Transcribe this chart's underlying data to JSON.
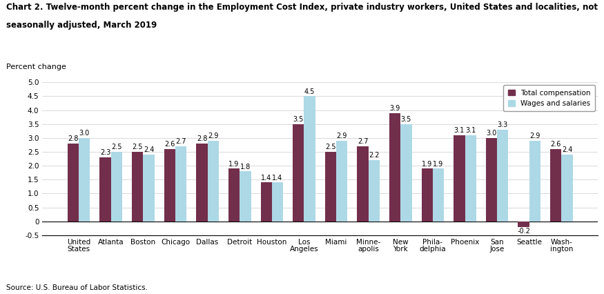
{
  "title_line1": "Chart 2. Twelve-month percent change in the Employment Cost Index, private industry workers, United States and localities, not",
  "title_line2": "seasonally adjusted, March 2019",
  "ylabel_text": "Percent change",
  "source": "Source: U.S. Bureau of Labor Statistics.",
  "categories": [
    "United\nStates",
    "Atlanta",
    "Boston",
    "Chicago",
    "Dallas",
    "Detroit",
    "Houston",
    "Los\nAngeles",
    "Miami",
    "Minne-\napolis",
    "New\nYork",
    "Phila-\ndelphia",
    "Phoenix",
    "San\nJose",
    "Seattle",
    "Wash-\nington"
  ],
  "total_compensation": [
    2.8,
    2.3,
    2.5,
    2.6,
    2.8,
    1.9,
    1.4,
    3.5,
    2.5,
    2.7,
    3.9,
    1.9,
    3.1,
    3.0,
    -0.2,
    2.6
  ],
  "wages_and_salaries": [
    3.0,
    2.5,
    2.4,
    2.7,
    2.9,
    1.8,
    1.4,
    4.5,
    2.9,
    2.2,
    3.5,
    1.9,
    3.1,
    3.3,
    2.9,
    2.4
  ],
  "total_comp_color": "#722F4B",
  "wages_color": "#ADD8E6",
  "ylim": [
    -0.5,
    5.0
  ],
  "yticks": [
    -0.5,
    0.0,
    0.5,
    1.0,
    1.5,
    2.0,
    2.5,
    3.0,
    3.5,
    4.0,
    4.5,
    5.0
  ],
  "legend_total": "Total compensation",
  "legend_wages": "Wages and salaries",
  "bar_width": 0.35,
  "label_fontsize": 7.0,
  "title_fontsize": 8.5,
  "axis_fontsize": 7.5,
  "source_fontsize": 7.5,
  "ylabel_fontsize": 8.0
}
